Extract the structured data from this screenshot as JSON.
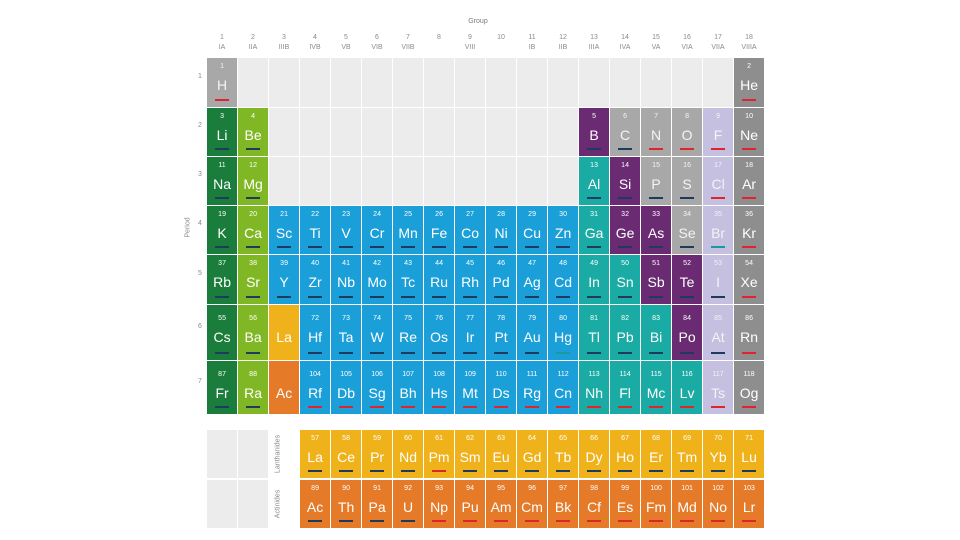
{
  "header": {
    "group_label": "Group",
    "period_label": "Period"
  },
  "groups": [
    {
      "num": "1",
      "roman": "IA"
    },
    {
      "num": "2",
      "roman": "IIA"
    },
    {
      "num": "3",
      "roman": "IIIB"
    },
    {
      "num": "4",
      "roman": "IVB"
    },
    {
      "num": "5",
      "roman": "VB"
    },
    {
      "num": "6",
      "roman": "VIB"
    },
    {
      "num": "7",
      "roman": "VIIB"
    },
    {
      "num": "8",
      "roman": ""
    },
    {
      "num": "9",
      "roman": "VIII"
    },
    {
      "num": "10",
      "roman": ""
    },
    {
      "num": "11",
      "roman": "IB"
    },
    {
      "num": "12",
      "roman": "IIB"
    },
    {
      "num": "13",
      "roman": "IIIA"
    },
    {
      "num": "14",
      "roman": "IVA"
    },
    {
      "num": "15",
      "roman": "VA"
    },
    {
      "num": "16",
      "roman": "VIA"
    },
    {
      "num": "17",
      "roman": "VIIA"
    },
    {
      "num": "18",
      "roman": "VIIIA"
    }
  ],
  "periods": [
    "1",
    "2",
    "3",
    "4",
    "5",
    "6",
    "7"
  ],
  "series_labels": {
    "lanthanides": "Lanthanides",
    "actinides": "Actinides"
  },
  "colors": {
    "alkali": "#1a7d3b",
    "alkaline": "#80b825",
    "transition": "#1b9fd9",
    "post_transition": "#1aaba4",
    "metalloid": "#6a2b72",
    "nonmetal": "#a8a8a8",
    "halogen": "#c5bfe0",
    "noble": "#8e8e8e",
    "lanthanide": "#f0b21a",
    "actinide": "#e57a29",
    "empty": "#ececec",
    "state_solid": "#1e3a5c",
    "state_liquid": "#1a9a9a",
    "state_gas": "#e0242d"
  },
  "elements": [
    {
      "n": "1",
      "s": "H",
      "c": "nonmetal",
      "st": "gas"
    },
    {
      "n": "2",
      "s": "He",
      "c": "noble",
      "st": "gas"
    },
    {
      "n": "3",
      "s": "Li",
      "c": "alkali",
      "st": "solid"
    },
    {
      "n": "4",
      "s": "Be",
      "c": "alkaline",
      "st": "solid"
    },
    {
      "n": "5",
      "s": "B",
      "c": "metalloid",
      "st": "solid"
    },
    {
      "n": "6",
      "s": "C",
      "c": "nonmetal",
      "st": "solid"
    },
    {
      "n": "7",
      "s": "N",
      "c": "nonmetal",
      "st": "gas"
    },
    {
      "n": "8",
      "s": "O",
      "c": "nonmetal",
      "st": "gas"
    },
    {
      "n": "9",
      "s": "F",
      "c": "halogen",
      "st": "gas"
    },
    {
      "n": "10",
      "s": "Ne",
      "c": "noble",
      "st": "gas"
    },
    {
      "n": "11",
      "s": "Na",
      "c": "alkali",
      "st": "solid"
    },
    {
      "n": "12",
      "s": "Mg",
      "c": "alkaline",
      "st": "solid"
    },
    {
      "n": "13",
      "s": "Al",
      "c": "post_transition",
      "st": "solid"
    },
    {
      "n": "14",
      "s": "Si",
      "c": "metalloid",
      "st": "solid"
    },
    {
      "n": "15",
      "s": "P",
      "c": "nonmetal",
      "st": "solid"
    },
    {
      "n": "16",
      "s": "S",
      "c": "nonmetal",
      "st": "solid"
    },
    {
      "n": "17",
      "s": "Cl",
      "c": "halogen",
      "st": "gas"
    },
    {
      "n": "18",
      "s": "Ar",
      "c": "noble",
      "st": "gas"
    },
    {
      "n": "19",
      "s": "K",
      "c": "alkali",
      "st": "solid"
    },
    {
      "n": "20",
      "s": "Ca",
      "c": "alkaline",
      "st": "solid"
    },
    {
      "n": "21",
      "s": "Sc",
      "c": "transition",
      "st": "solid"
    },
    {
      "n": "22",
      "s": "Ti",
      "c": "transition",
      "st": "solid"
    },
    {
      "n": "23",
      "s": "V",
      "c": "transition",
      "st": "solid"
    },
    {
      "n": "24",
      "s": "Cr",
      "c": "transition",
      "st": "solid"
    },
    {
      "n": "25",
      "s": "Mn",
      "c": "transition",
      "st": "solid"
    },
    {
      "n": "26",
      "s": "Fe",
      "c": "transition",
      "st": "solid"
    },
    {
      "n": "27",
      "s": "Co",
      "c": "transition",
      "st": "solid"
    },
    {
      "n": "28",
      "s": "Ni",
      "c": "transition",
      "st": "solid"
    },
    {
      "n": "29",
      "s": "Cu",
      "c": "transition",
      "st": "solid"
    },
    {
      "n": "30",
      "s": "Zn",
      "c": "transition",
      "st": "solid"
    },
    {
      "n": "31",
      "s": "Ga",
      "c": "post_transition",
      "st": "solid"
    },
    {
      "n": "32",
      "s": "Ge",
      "c": "metalloid",
      "st": "solid"
    },
    {
      "n": "33",
      "s": "As",
      "c": "metalloid",
      "st": "solid"
    },
    {
      "n": "34",
      "s": "Se",
      "c": "nonmetal",
      "st": "solid"
    },
    {
      "n": "35",
      "s": "Br",
      "c": "halogen",
      "st": "liquid"
    },
    {
      "n": "36",
      "s": "Kr",
      "c": "noble",
      "st": "gas"
    },
    {
      "n": "37",
      "s": "Rb",
      "c": "alkali",
      "st": "solid"
    },
    {
      "n": "38",
      "s": "Sr",
      "c": "alkaline",
      "st": "solid"
    },
    {
      "n": "39",
      "s": "Y",
      "c": "transition",
      "st": "solid"
    },
    {
      "n": "40",
      "s": "Zr",
      "c": "transition",
      "st": "solid"
    },
    {
      "n": "41",
      "s": "Nb",
      "c": "transition",
      "st": "solid"
    },
    {
      "n": "42",
      "s": "Mo",
      "c": "transition",
      "st": "solid"
    },
    {
      "n": "43",
      "s": "Tc",
      "c": "transition",
      "st": "solid"
    },
    {
      "n": "44",
      "s": "Ru",
      "c": "transition",
      "st": "solid"
    },
    {
      "n": "45",
      "s": "Rh",
      "c": "transition",
      "st": "solid"
    },
    {
      "n": "46",
      "s": "Pd",
      "c": "transition",
      "st": "solid"
    },
    {
      "n": "47",
      "s": "Ag",
      "c": "transition",
      "st": "solid"
    },
    {
      "n": "48",
      "s": "Cd",
      "c": "transition",
      "st": "solid"
    },
    {
      "n": "49",
      "s": "In",
      "c": "post_transition",
      "st": "solid"
    },
    {
      "n": "50",
      "s": "Sn",
      "c": "post_transition",
      "st": "solid"
    },
    {
      "n": "51",
      "s": "Sb",
      "c": "metalloid",
      "st": "solid"
    },
    {
      "n": "52",
      "s": "Te",
      "c": "metalloid",
      "st": "solid"
    },
    {
      "n": "53",
      "s": "I",
      "c": "halogen",
      "st": "solid"
    },
    {
      "n": "54",
      "s": "Xe",
      "c": "noble",
      "st": "gas"
    },
    {
      "n": "55",
      "s": "Cs",
      "c": "alkali",
      "st": "solid"
    },
    {
      "n": "56",
      "s": "Ba",
      "c": "alkaline",
      "st": "solid"
    },
    {
      "n": "",
      "s": "La",
      "c": "lanthanide",
      "st": ""
    },
    {
      "n": "72",
      "s": "Hf",
      "c": "transition",
      "st": "solid"
    },
    {
      "n": "73",
      "s": "Ta",
      "c": "transition",
      "st": "solid"
    },
    {
      "n": "74",
      "s": "W",
      "c": "transition",
      "st": "solid"
    },
    {
      "n": "75",
      "s": "Re",
      "c": "transition",
      "st": "solid"
    },
    {
      "n": "76",
      "s": "Os",
      "c": "transition",
      "st": "solid"
    },
    {
      "n": "77",
      "s": "Ir",
      "c": "transition",
      "st": "solid"
    },
    {
      "n": "78",
      "s": "Pt",
      "c": "transition",
      "st": "solid"
    },
    {
      "n": "79",
      "s": "Au",
      "c": "transition",
      "st": "solid"
    },
    {
      "n": "80",
      "s": "Hg",
      "c": "transition",
      "st": "liquid"
    },
    {
      "n": "81",
      "s": "Tl",
      "c": "post_transition",
      "st": "solid"
    },
    {
      "n": "82",
      "s": "Pb",
      "c": "post_transition",
      "st": "solid"
    },
    {
      "n": "83",
      "s": "Bi",
      "c": "post_transition",
      "st": "solid"
    },
    {
      "n": "84",
      "s": "Po",
      "c": "metalloid",
      "st": "solid"
    },
    {
      "n": "85",
      "s": "At",
      "c": "halogen",
      "st": "solid"
    },
    {
      "n": "86",
      "s": "Rn",
      "c": "noble",
      "st": "gas"
    },
    {
      "n": "87",
      "s": "Fr",
      "c": "alkali",
      "st": "solid"
    },
    {
      "n": "88",
      "s": "Ra",
      "c": "alkaline",
      "st": "solid"
    },
    {
      "n": "",
      "s": "Ac",
      "c": "actinide",
      "st": ""
    },
    {
      "n": "104",
      "s": "Rf",
      "c": "transition",
      "st": "gas"
    },
    {
      "n": "105",
      "s": "Db",
      "c": "transition",
      "st": "gas"
    },
    {
      "n": "106",
      "s": "Sg",
      "c": "transition",
      "st": "gas"
    },
    {
      "n": "107",
      "s": "Bh",
      "c": "transition",
      "st": "gas"
    },
    {
      "n": "108",
      "s": "Hs",
      "c": "transition",
      "st": "gas"
    },
    {
      "n": "109",
      "s": "Mt",
      "c": "transition",
      "st": "gas"
    },
    {
      "n": "110",
      "s": "Ds",
      "c": "transition",
      "st": "gas"
    },
    {
      "n": "111",
      "s": "Rg",
      "c": "transition",
      "st": "gas"
    },
    {
      "n": "112",
      "s": "Cn",
      "c": "transition",
      "st": "gas"
    },
    {
      "n": "113",
      "s": "Nh",
      "c": "post_transition",
      "st": "gas"
    },
    {
      "n": "114",
      "s": "Fl",
      "c": "post_transition",
      "st": "gas"
    },
    {
      "n": "115",
      "s": "Mc",
      "c": "post_transition",
      "st": "gas"
    },
    {
      "n": "116",
      "s": "Lv",
      "c": "post_transition",
      "st": "gas"
    },
    {
      "n": "117",
      "s": "Ts",
      "c": "halogen",
      "st": "gas"
    },
    {
      "n": "118",
      "s": "Og",
      "c": "noble",
      "st": "gas"
    },
    {
      "n": "57",
      "s": "La",
      "c": "lanthanide",
      "st": "solid"
    },
    {
      "n": "58",
      "s": "Ce",
      "c": "lanthanide",
      "st": "solid"
    },
    {
      "n": "59",
      "s": "Pr",
      "c": "lanthanide",
      "st": "solid"
    },
    {
      "n": "60",
      "s": "Nd",
      "c": "lanthanide",
      "st": "solid"
    },
    {
      "n": "61",
      "s": "Pm",
      "c": "lanthanide",
      "st": "gas"
    },
    {
      "n": "62",
      "s": "Sm",
      "c": "lanthanide",
      "st": "solid"
    },
    {
      "n": "63",
      "s": "Eu",
      "c": "lanthanide",
      "st": "solid"
    },
    {
      "n": "64",
      "s": "Gd",
      "c": "lanthanide",
      "st": "solid"
    },
    {
      "n": "65",
      "s": "Tb",
      "c": "lanthanide",
      "st": "solid"
    },
    {
      "n": "66",
      "s": "Dy",
      "c": "lanthanide",
      "st": "solid"
    },
    {
      "n": "67",
      "s": "Ho",
      "c": "lanthanide",
      "st": "solid"
    },
    {
      "n": "68",
      "s": "Er",
      "c": "lanthanide",
      "st": "solid"
    },
    {
      "n": "69",
      "s": "Tm",
      "c": "lanthanide",
      "st": "solid"
    },
    {
      "n": "70",
      "s": "Yb",
      "c": "lanthanide",
      "st": "solid"
    },
    {
      "n": "71",
      "s": "Lu",
      "c": "lanthanide",
      "st": "solid"
    },
    {
      "n": "89",
      "s": "Ac",
      "c": "actinide",
      "st": "solid"
    },
    {
      "n": "90",
      "s": "Th",
      "c": "actinide",
      "st": "solid"
    },
    {
      "n": "91",
      "s": "Pa",
      "c": "actinide",
      "st": "solid"
    },
    {
      "n": "92",
      "s": "U",
      "c": "actinide",
      "st": "solid"
    },
    {
      "n": "93",
      "s": "Np",
      "c": "actinide",
      "st": "gas"
    },
    {
      "n": "94",
      "s": "Pu",
      "c": "actinide",
      "st": "gas"
    },
    {
      "n": "95",
      "s": "Am",
      "c": "actinide",
      "st": "gas"
    },
    {
      "n": "96",
      "s": "Cm",
      "c": "actinide",
      "st": "gas"
    },
    {
      "n": "97",
      "s": "Bk",
      "c": "actinide",
      "st": "gas"
    },
    {
      "n": "98",
      "s": "Cf",
      "c": "actinide",
      "st": "gas"
    },
    {
      "n": "99",
      "s": "Es",
      "c": "actinide",
      "st": "gas"
    },
    {
      "n": "100",
      "s": "Fm",
      "c": "actinide",
      "st": "gas"
    },
    {
      "n": "101",
      "s": "Md",
      "c": "actinide",
      "st": "gas"
    },
    {
      "n": "102",
      "s": "No",
      "c": "actinide",
      "st": "gas"
    },
    {
      "n": "103",
      "s": "Lr",
      "c": "actinide",
      "st": "gas"
    }
  ]
}
